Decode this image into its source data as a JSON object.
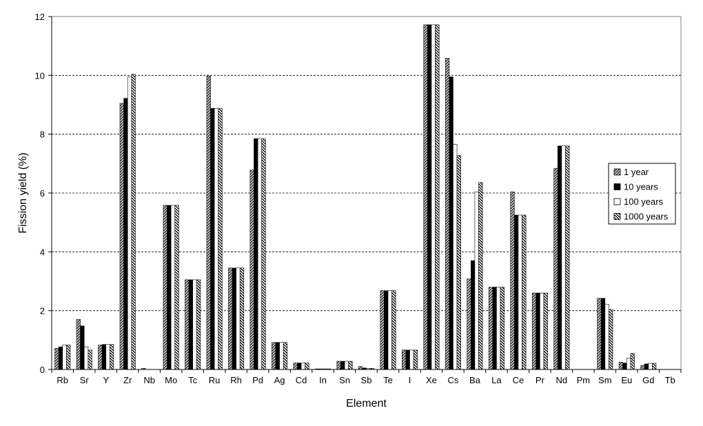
{
  "chart_data": {
    "type": "bar",
    "title": "",
    "xlabel": "Element",
    "ylabel": "Fission yield (%)",
    "ylim": [
      0,
      12
    ],
    "yticks": [
      0,
      2,
      4,
      6,
      8,
      10,
      12
    ],
    "grid": true,
    "legend_position": "right",
    "categories": [
      "Rb",
      "Sr",
      "Y",
      "Zr",
      "Nb",
      "Mo",
      "Tc",
      "Ru",
      "Rh",
      "Pd",
      "Ag",
      "Cd",
      "In",
      "Sn",
      "Sb",
      "Te",
      "I",
      "Xe",
      "Cs",
      "Ba",
      "La",
      "Ce",
      "Pr",
      "Nd",
      "Pm",
      "Sm",
      "Eu",
      "Gd",
      "Tb"
    ],
    "series": [
      {
        "name": "1 year",
        "pattern": "hatch-gray",
        "values": [
          0.72,
          1.7,
          0.83,
          9.05,
          0.04,
          5.58,
          3.05,
          9.98,
          3.45,
          6.78,
          0.92,
          0.22,
          0.02,
          0.28,
          0.1,
          2.68,
          0.66,
          11.72,
          10.58,
          3.08,
          2.8,
          6.04,
          2.6,
          6.84,
          0.0,
          2.42,
          0.25,
          0.14,
          0.0
        ]
      },
      {
        "name": "10 years",
        "pattern": "solid-black",
        "values": [
          0.77,
          1.48,
          0.85,
          9.22,
          0.0,
          5.58,
          3.05,
          8.88,
          3.45,
          7.85,
          0.92,
          0.22,
          0.02,
          0.28,
          0.05,
          2.68,
          0.66,
          11.72,
          9.95,
          3.7,
          2.8,
          5.25,
          2.6,
          7.6,
          0.0,
          2.42,
          0.22,
          0.19,
          0.0
        ]
      },
      {
        "name": "100 years",
        "pattern": "solid-white",
        "values": [
          0.83,
          0.77,
          0.85,
          9.95,
          0.0,
          5.58,
          3.05,
          8.87,
          3.45,
          7.85,
          0.92,
          0.22,
          0.02,
          0.28,
          0.04,
          2.68,
          0.66,
          11.72,
          7.65,
          6.04,
          2.8,
          5.25,
          2.6,
          7.6,
          0.0,
          2.22,
          0.38,
          0.21,
          0.0
        ]
      },
      {
        "name": "1000 years",
        "pattern": "hatch-dark",
        "values": [
          0.83,
          0.66,
          0.85,
          10.04,
          0.0,
          5.58,
          3.05,
          8.87,
          3.45,
          7.85,
          0.92,
          0.22,
          0.02,
          0.28,
          0.04,
          2.68,
          0.66,
          11.72,
          7.28,
          6.36,
          2.8,
          5.25,
          2.6,
          7.6,
          0.0,
          2.04,
          0.55,
          0.21,
          0.0
        ]
      }
    ]
  }
}
